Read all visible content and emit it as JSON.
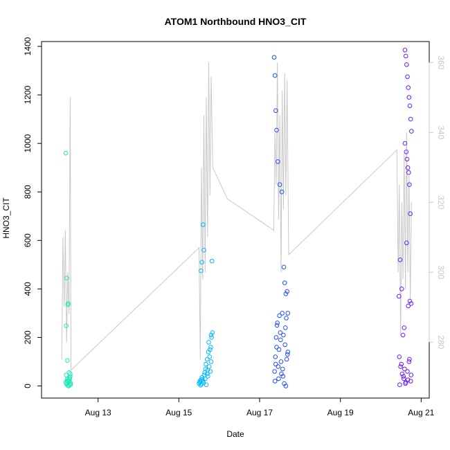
{
  "chart_data": {
    "type": "scatter",
    "title": "ATOM1 Northbound HNO3_CIT",
    "xlabel": "Date",
    "ylabel": "HNO3_CIT",
    "x_ticks": [
      "Aug 13",
      "Aug 15",
      "Aug 17",
      "Aug 19",
      "Aug 21"
    ],
    "x_tick_days": [
      13,
      15,
      17,
      19,
      21
    ],
    "xlim_days": [
      11.6,
      21.2
    ],
    "ylim": [
      -50,
      1420
    ],
    "y_ticks": [
      0,
      200,
      400,
      600,
      800,
      1000,
      1200,
      1400
    ],
    "y2_ticks": [
      280,
      300,
      320,
      340,
      360
    ],
    "y2lim": [
      264,
      366
    ],
    "grid": false,
    "colors": {
      "points_day12": "#1de9b6",
      "points_day15": "#00b8ff",
      "points_day17": "#1f4bff",
      "points_day20": "#6a1bff",
      "secondary_line": "#c8c8c8",
      "right_axis": "#c8c8c8"
    },
    "series": [
      {
        "x_days": [
          12.2,
          12.21,
          12.22,
          12.24,
          12.25,
          12.26,
          12.28,
          12.29,
          12.3,
          12.31,
          12.2,
          12.22,
          12.23,
          12.25,
          12.27,
          12.28,
          12.3,
          12.32,
          12.21,
          12.24,
          12.26,
          12.29,
          12.31,
          12.32,
          12.23
        ],
        "values": [
          960,
          248,
          445,
          105,
          335,
          340,
          55,
          35,
          30,
          40,
          15,
          10,
          5,
          20,
          0,
          25,
          8,
          12,
          45,
          30,
          2,
          18,
          50,
          6,
          22
        ]
      },
      {
        "x_days": [
          15.5,
          15.52,
          15.55,
          15.57,
          15.6,
          15.62,
          15.65,
          15.68,
          15.7,
          15.72,
          15.75,
          15.78,
          15.8,
          15.82,
          15.52,
          15.55,
          15.57,
          15.6,
          15.63,
          15.66,
          15.7,
          15.73,
          15.76,
          15.79,
          15.81,
          15.56,
          15.61,
          15.67,
          15.74,
          15.8,
          15.54,
          15.58,
          15.64,
          15.71,
          15.77,
          15.83
        ],
        "values": [
          10,
          20,
          475,
          510,
          665,
          560,
          30,
          5,
          50,
          40,
          80,
          60,
          100,
          515,
          15,
          25,
          35,
          20,
          45,
          70,
          110,
          140,
          120,
          160,
          200,
          8,
          12,
          90,
          180,
          210,
          3,
          28,
          55,
          65,
          150,
          220
        ]
      },
      {
        "x_days": [
          17.36,
          17.38,
          17.4,
          17.42,
          17.45,
          17.5,
          17.55,
          17.6,
          17.62,
          17.65,
          17.68,
          17.7,
          17.37,
          17.39,
          17.41,
          17.43,
          17.46,
          17.48,
          17.51,
          17.53,
          17.56,
          17.58,
          17.61,
          17.63,
          17.66,
          17.69,
          17.4,
          17.44,
          17.47,
          17.52,
          17.57,
          17.64,
          17.67,
          17.38,
          17.42,
          17.49,
          17.54,
          17.59,
          17.65,
          17.7
        ],
        "values": [
          1355,
          1280,
          1135,
          1055,
          925,
          830,
          800,
          490,
          425,
          380,
          390,
          300,
          60,
          120,
          200,
          250,
          80,
          150,
          220,
          100,
          300,
          40,
          10,
          170,
          280,
          130,
          90,
          260,
          30,
          190,
          70,
          240,
          110,
          20,
          160,
          290,
          50,
          210,
          0,
          140
        ]
      },
      {
        "x_days": [
          20.45,
          20.48,
          20.52,
          20.55,
          20.58,
          20.6,
          20.62,
          20.64,
          20.66,
          20.68,
          20.7,
          20.72,
          20.74,
          20.76,
          20.6,
          20.63,
          20.65,
          20.67,
          20.69,
          20.71,
          20.73,
          20.75,
          20.64,
          20.68,
          20.72,
          20.46,
          20.49,
          20.53,
          20.57,
          20.61,
          20.66,
          20.7,
          20.74,
          20.47,
          20.51,
          20.56,
          20.59,
          20.62,
          20.67,
          20.71,
          20.75
        ],
        "values": [
          370,
          520,
          400,
          210,
          240,
          1385,
          1360,
          1325,
          1275,
          1230,
          1190,
          1155,
          1100,
          1050,
          1000,
          965,
          935,
          900,
          880,
          830,
          710,
          340,
          590,
          330,
          350,
          120,
          80,
          50,
          30,
          10,
          60,
          100,
          20,
          5,
          90,
          40,
          70,
          15,
          25,
          110,
          45
        ]
      }
    ],
    "secondary_line": {
      "name": "",
      "x_days": [
        12.1,
        12.13,
        12.16,
        12.19,
        12.22,
        12.25,
        12.28,
        12.31,
        12.33,
        15.5,
        15.53,
        15.56,
        15.59,
        15.62,
        15.65,
        15.68,
        15.71,
        15.74,
        15.77,
        15.8,
        15.84,
        16.2,
        17.35,
        17.38,
        17.41,
        17.44,
        17.47,
        17.5,
        17.53,
        17.56,
        17.59,
        17.62,
        17.65,
        17.68,
        17.72,
        20.4,
        20.43,
        20.46,
        20.49,
        20.52,
        20.55,
        20.58,
        20.61,
        20.64,
        20.67,
        20.7,
        20.73,
        20.76
      ],
      "values": [
        275,
        310,
        290,
        312,
        280,
        300,
        288,
        350,
        272,
        307,
        275,
        330,
        298,
        345,
        300,
        350,
        310,
        360,
        322,
        356,
        330,
        321,
        312,
        340,
        325,
        360,
        315,
        345,
        300,
        352,
        318,
        357,
        322,
        355,
        305,
        335,
        300,
        325,
        282,
        320,
        298,
        334,
        295,
        340,
        300,
        328,
        292,
        320
      ]
    }
  }
}
